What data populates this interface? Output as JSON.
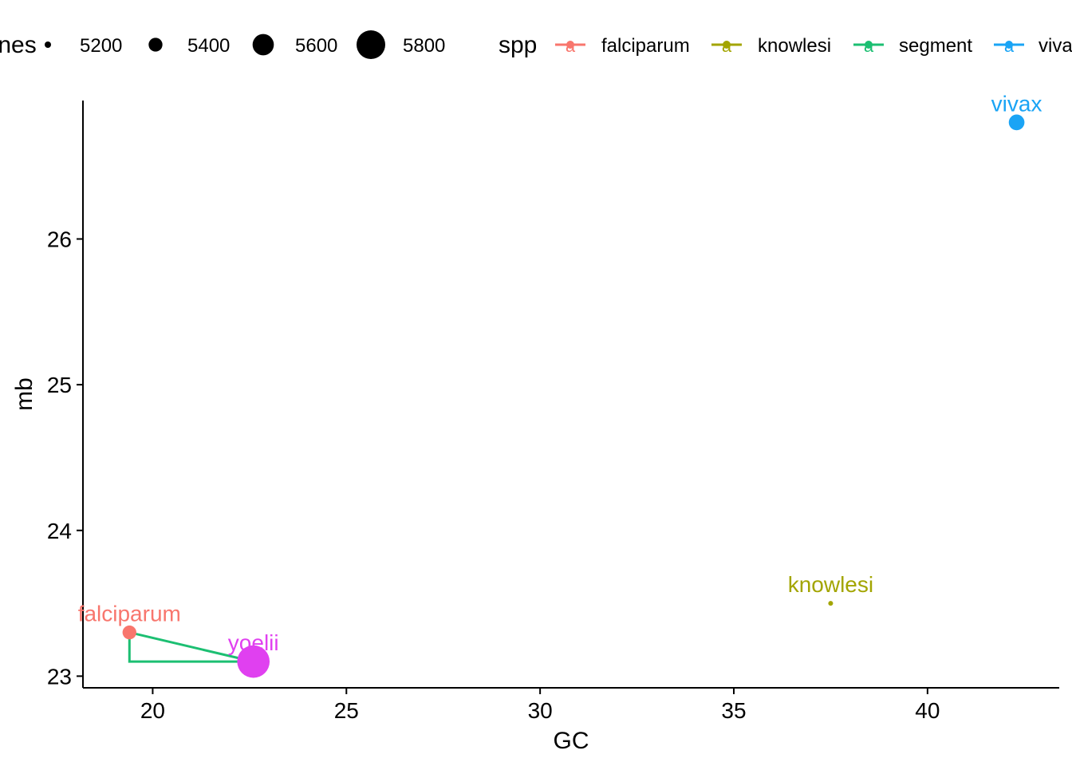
{
  "chart_data": {
    "type": "scatter",
    "title": "",
    "xlabel": "GC",
    "ylabel": "mb",
    "xlim": [
      18.2,
      43.4
    ],
    "ylim": [
      22.92,
      26.95
    ],
    "x_ticks": [
      20,
      25,
      30,
      35,
      40
    ],
    "y_ticks": [
      23,
      24,
      25,
      26
    ],
    "grid": false,
    "legend_position": "top",
    "size_legend": {
      "title": "genes",
      "entries": [
        5200,
        5400,
        5600,
        5800
      ]
    },
    "color_legend": {
      "title": "spp",
      "entries": [
        {
          "label": "falciparum",
          "color": "#F8766D"
        },
        {
          "label": "knowlesi",
          "color": "#A3A500"
        },
        {
          "label": "segment",
          "color": "#1CBF72"
        },
        {
          "label": "vivax",
          "color": "#1AA4F5"
        }
      ]
    },
    "points": [
      {
        "label": "falciparum",
        "x": 19.4,
        "y": 23.3,
        "genes": 5400,
        "color": "#F8766D"
      },
      {
        "label": "knowlesi",
        "x": 37.5,
        "y": 23.5,
        "genes": 5100,
        "color": "#A3A500"
      },
      {
        "label": "vivax",
        "x": 42.3,
        "y": 26.8,
        "genes": 5450,
        "color": "#1AA4F5"
      },
      {
        "label": "yoelii",
        "x": 22.6,
        "y": 23.1,
        "genes": 5900,
        "color": "#E040F0"
      }
    ],
    "segment": {
      "label": "segment",
      "color": "#1CBF72",
      "path": [
        [
          19.4,
          23.3
        ],
        [
          22.6,
          23.1
        ],
        [
          19.4,
          23.1
        ],
        [
          19.4,
          23.3
        ]
      ]
    }
  }
}
